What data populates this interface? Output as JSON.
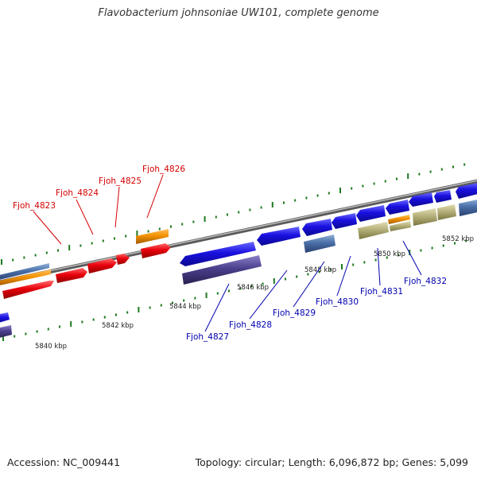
{
  "title": "Flavobacterium johnsoniae UW101, complete genome",
  "footer": {
    "accession": "Accession: NC_009441",
    "summary": "Topology: circular; Length: 6,096,872 bp; Genes: 5,099"
  },
  "colors": {
    "forward_gene": "#e8000b",
    "reverse_gene": "#1a10e0",
    "rna_gene": "#f39200",
    "pseudo_gene": "#4a6fa8",
    "other_gene": "#4a3f8c",
    "khaki_gene": "#b5b07a",
    "backbone": "#8a8a8a",
    "tick_mark": "#1f7a1f",
    "forward_label": "#d40000",
    "reverse_label": "#0000b0"
  },
  "ticks": [
    "5840 kbp",
    "5842 kbp",
    "5844 kbp",
    "5846 kbp",
    "5848 kbp",
    "5850 kbp",
    "5852 kbp"
  ],
  "genes_forward": [
    {
      "name": "Fjoh_4823"
    },
    {
      "name": "Fjoh_4824"
    },
    {
      "name": "Fjoh_4825"
    },
    {
      "name": "Fjoh_4826"
    }
  ],
  "genes_reverse": [
    {
      "name": "Fjoh_4827"
    },
    {
      "name": "Fjoh_4828"
    },
    {
      "name": "Fjoh_4829"
    },
    {
      "name": "Fjoh_4830"
    },
    {
      "name": "Fjoh_4831"
    },
    {
      "name": "Fjoh_4832"
    }
  ]
}
